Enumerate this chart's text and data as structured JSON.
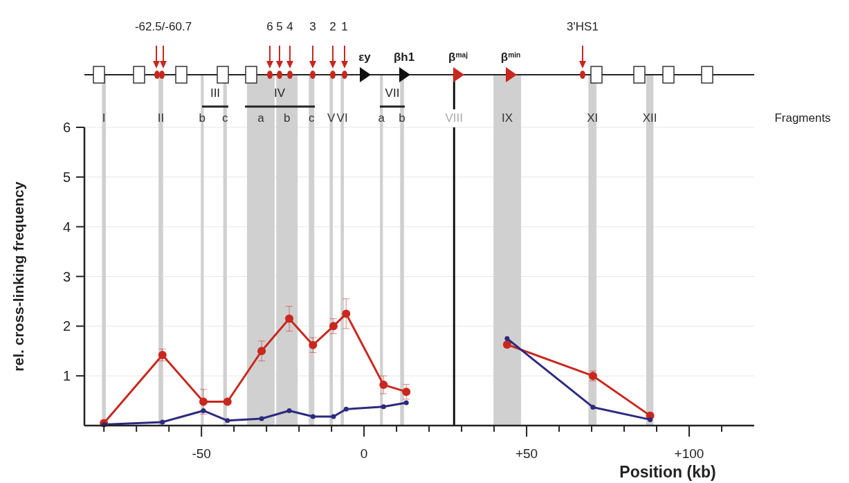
{
  "chart_data": {
    "type": "line",
    "xlabel": "Position (kb)",
    "ylabel": "rel. cross-linking frequency",
    "x": [
      -80,
      -62,
      -49.4,
      -42,
      -31.5,
      -23,
      -15.7,
      -9.4,
      -5.5,
      6,
      13,
      28,
      44,
      70.4,
      88
    ],
    "series": [
      {
        "color": "#c8281e",
        "values": [
          0.05,
          1.42,
          0.48,
          0.48,
          1.5,
          2.15,
          1.62,
          2.0,
          2.25,
          0.82,
          0.68,
          null,
          1.63,
          1.0,
          0.2
        ],
        "errors": [
          null,
          0.12,
          0.25,
          null,
          0.2,
          0.25,
          0.15,
          0.15,
          0.3,
          0.18,
          0.15,
          null,
          0.05,
          0.1,
          null
        ]
      },
      {
        "color": "#2b2a7e",
        "values": [
          0.02,
          0.07,
          0.3,
          0.1,
          0.14,
          0.3,
          0.18,
          0.18,
          0.33,
          0.38,
          0.46,
          null,
          1.75,
          0.37,
          0.12
        ]
      }
    ],
    "xlim": [
      -86,
      120
    ],
    "xticks": [
      {
        "value": -80,
        "label": null
      },
      {
        "value": -70,
        "label": null
      },
      {
        "value": -60,
        "label": null
      },
      {
        "value": -50,
        "label": "-50"
      },
      {
        "value": -40,
        "label": null
      },
      {
        "value": -30,
        "label": null
      },
      {
        "value": -20,
        "label": null
      },
      {
        "value": -10,
        "label": null
      },
      0,
      {
        "value": 10,
        "label": null
      },
      {
        "value": 20,
        "label": null
      },
      {
        "value": 30,
        "label": null
      },
      {
        "value": 40,
        "label": null
      },
      {
        "value": 50,
        "label": "+50"
      },
      {
        "value": 60,
        "label": null
      },
      {
        "value": 70,
        "label": null
      },
      {
        "value": 80,
        "label": null
      },
      {
        "value": 90,
        "label": null
      },
      {
        "value": 100,
        "label": "+100"
      },
      {
        "value": 110,
        "label": null
      }
    ],
    "ylim": [
      0,
      6
    ],
    "yticks": [
      1,
      2,
      3,
      4,
      5,
      6
    ],
    "grid": "y",
    "marker": "circle",
    "line_style": "solid",
    "bands": [
      {
        "axis": "x",
        "from": -80.6,
        "to": -79.4,
        "label": "I",
        "color": "#d0d0d0"
      },
      {
        "axis": "x",
        "from": -63.2,
        "to": -61.8,
        "label": "II",
        "color": "#d0d0d0"
      },
      {
        "axis": "x",
        "from": -50.2,
        "to": -49.3,
        "label": "b",
        "color": "#d0d0d0"
      },
      {
        "axis": "x",
        "from": -43.3,
        "to": -42.2,
        "label": "c",
        "color": "#d0d0d0"
      },
      {
        "axis": "x",
        "from": -36,
        "to": -27.5,
        "label": "a",
        "color": "#d0d0d0"
      },
      {
        "axis": "x",
        "from": -27,
        "to": -20.4,
        "label": "b",
        "color": "#d0d0d0"
      },
      {
        "axis": "x",
        "from": -17,
        "to": -15.3,
        "label": "c",
        "color": "#d0d0d0"
      },
      {
        "axis": "x",
        "from": -10.6,
        "to": -9.6,
        "label": "V",
        "color": "#d0d0d0"
      },
      {
        "axis": "x",
        "from": -7.2,
        "to": -6.2,
        "label": "VI",
        "color": "#d0d0d0"
      },
      {
        "axis": "x",
        "from": 4.9,
        "to": 5.8,
        "label": "a",
        "color": "#d0d0d0"
      },
      {
        "axis": "x",
        "from": 11.1,
        "to": 12.3,
        "label": "b",
        "color": "#d0d0d0"
      },
      {
        "axis": "x",
        "from": 39.8,
        "to": 48.3,
        "label": "IX",
        "color": "#d0d0d0"
      },
      {
        "axis": "x",
        "from": 69,
        "to": 71.5,
        "label": "XI",
        "color": "#d0d0d0"
      },
      {
        "axis": "x",
        "from": 86.8,
        "to": 89,
        "label": "XII",
        "color": "#d0d0d0"
      }
    ],
    "ref_lines": [
      {
        "axis": "x",
        "value": 27.7,
        "label": "VIII",
        "color": "#111111"
      }
    ],
    "annotations": [
      "-62.5/-60.7",
      "6",
      "5",
      "4",
      "3",
      "2",
      "1",
      "3'HS1",
      "εy",
      "βh1",
      "β$^{maj}$",
      "β$^{min}$",
      "III",
      "IV",
      "VII",
      "Fragments"
    ]
  }
}
